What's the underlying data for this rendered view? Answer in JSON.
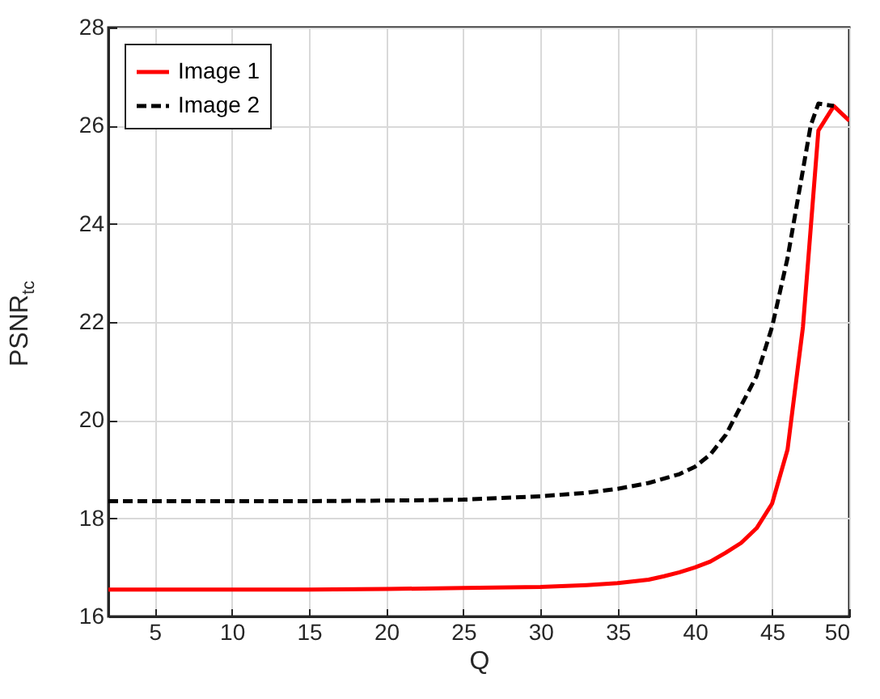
{
  "chart_data": {
    "type": "line",
    "xlabel": "Q",
    "ylabel": "PSNR$_{tc}$",
    "series": [
      {
        "name": "Image 1",
        "color": "#ff0000",
        "line_style": "solid",
        "x": [
          2,
          5,
          10,
          15,
          20,
          25,
          30,
          33,
          35,
          37,
          38,
          39,
          40,
          41,
          42,
          43,
          44,
          45,
          46,
          47,
          48,
          49,
          50
        ],
        "values": [
          16.55,
          16.55,
          16.55,
          16.55,
          16.56,
          16.58,
          16.6,
          16.64,
          16.68,
          16.75,
          16.82,
          16.9,
          17.0,
          17.12,
          17.3,
          17.5,
          17.8,
          18.3,
          19.4,
          21.9,
          25.9,
          26.4,
          26.1
        ]
      },
      {
        "name": "Image 2",
        "color": "#000000",
        "line_style": "dashed",
        "x": [
          2,
          5,
          10,
          15,
          20,
          25,
          30,
          33,
          35,
          37,
          39,
          40,
          41,
          42,
          43,
          44,
          45,
          46,
          47,
          47.5,
          48,
          49
        ],
        "values": [
          18.35,
          18.35,
          18.35,
          18.35,
          18.36,
          18.38,
          18.45,
          18.52,
          18.6,
          18.72,
          18.9,
          19.05,
          19.3,
          19.7,
          20.3,
          20.9,
          21.9,
          23.3,
          25.1,
          26.0,
          26.45,
          26.4
        ]
      }
    ],
    "xlim": [
      2,
      50
    ],
    "xticks": [
      5,
      10,
      15,
      20,
      25,
      30,
      35,
      40,
      45,
      50
    ],
    "ylim": [
      16,
      28
    ],
    "yticks": [
      16,
      18,
      20,
      22,
      24,
      26,
      28
    ],
    "grid": true,
    "legend": "top left"
  }
}
